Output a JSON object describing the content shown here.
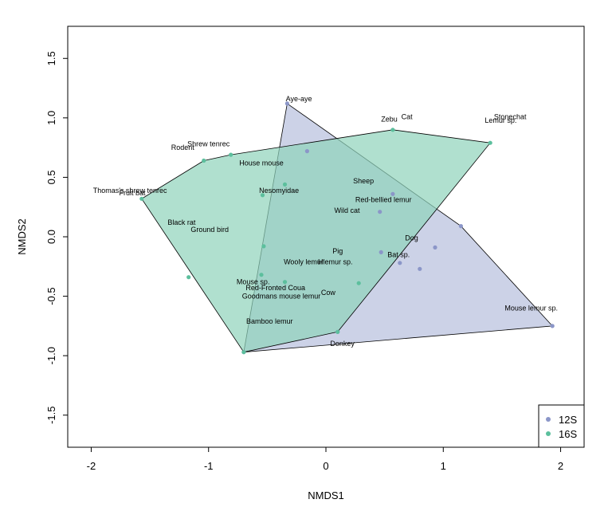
{
  "chart_data": {
    "type": "scatter",
    "xlabel": "NMDS1",
    "ylabel": "NMDS2",
    "xlim": [
      -2.2,
      2.2
    ],
    "ylim": [
      -1.77,
      1.77
    ],
    "xticks": [
      "-2",
      "-1",
      "0",
      "1",
      "2"
    ],
    "yticks": [
      "-1.5",
      "-1.0",
      "-0.5",
      "0.0",
      "0.5",
      "1.0",
      "1.5"
    ],
    "legend_position": "bottom-right",
    "series": [
      {
        "name": "12S",
        "color": "#8b96c8",
        "fill": "#b7bfdd",
        "points": [
          {
            "x": -0.33,
            "y": 1.12
          },
          {
            "x": -0.16,
            "y": 0.72
          },
          {
            "x": 0.57,
            "y": 0.36
          },
          {
            "x": 0.46,
            "y": 0.21
          },
          {
            "x": 1.15,
            "y": 0.09
          },
          {
            "x": 0.93,
            "y": -0.09
          },
          {
            "x": 0.47,
            "y": -0.13
          },
          {
            "x": 0.63,
            "y": -0.22
          },
          {
            "x": 0.8,
            "y": -0.27
          },
          {
            "x": 1.93,
            "y": -0.75
          },
          {
            "x": 0.1,
            "y": -0.8
          },
          {
            "x": -0.7,
            "y": -0.97
          }
        ],
        "hull": [
          {
            "x": -0.33,
            "y": 1.12
          },
          {
            "x": 1.15,
            "y": 0.09
          },
          {
            "x": 1.93,
            "y": -0.75
          },
          {
            "x": -0.7,
            "y": -0.97
          }
        ]
      },
      {
        "name": "16S",
        "color": "#5cbf9d",
        "fill": "#8fd3bb",
        "points": [
          {
            "x": 0.57,
            "y": 0.9
          },
          {
            "x": 1.4,
            "y": 0.79
          },
          {
            "x": -0.81,
            "y": 0.69
          },
          {
            "x": -1.04,
            "y": 0.64
          },
          {
            "x": -1.57,
            "y": 0.32
          },
          {
            "x": -0.35,
            "y": 0.44
          },
          {
            "x": -0.54,
            "y": 0.35
          },
          {
            "x": -0.53,
            "y": -0.08
          },
          {
            "x": -1.17,
            "y": -0.34
          },
          {
            "x": -0.55,
            "y": -0.32
          },
          {
            "x": -0.35,
            "y": -0.38
          },
          {
            "x": 0.28,
            "y": -0.39
          },
          {
            "x": 0.1,
            "y": -0.8
          },
          {
            "x": -0.7,
            "y": -0.97
          }
        ],
        "hull": [
          {
            "x": 0.57,
            "y": 0.9
          },
          {
            "x": 1.4,
            "y": 0.79
          },
          {
            "x": 0.1,
            "y": -0.8
          },
          {
            "x": -0.7,
            "y": -0.97
          },
          {
            "x": -1.57,
            "y": 0.32
          },
          {
            "x": -1.04,
            "y": 0.64
          },
          {
            "x": -0.81,
            "y": 0.69
          }
        ]
      }
    ],
    "labels": [
      {
        "text": "Aye-aye",
        "x": -0.23,
        "y": 1.14
      },
      {
        "text": "Zebu",
        "x": 0.54,
        "y": 0.97
      },
      {
        "text": "Cat",
        "x": 0.69,
        "y": 0.99
      },
      {
        "text": "Stonechat",
        "x": 1.57,
        "y": 0.99
      },
      {
        "text": "Lemur sp.",
        "x": 1.49,
        "y": 0.96
      },
      {
        "text": "Shrew tenrec",
        "x": -1.0,
        "y": 0.76
      },
      {
        "text": "Rodent",
        "x": -1.22,
        "y": 0.73
      },
      {
        "text": "House mouse",
        "x": -0.55,
        "y": 0.6
      },
      {
        "text": "Sheep",
        "x": 0.32,
        "y": 0.45
      },
      {
        "text": "Thomas's shrew tenrec",
        "x": -1.67,
        "y": 0.37
      },
      {
        "text": "Fruit bat",
        "x": -1.65,
        "y": 0.35
      },
      {
        "text": "Nesomyidae",
        "x": -0.4,
        "y": 0.37
      },
      {
        "text": "Red-bellied lemur",
        "x": 0.49,
        "y": 0.29
      },
      {
        "text": "Wild cat",
        "x": 0.18,
        "y": 0.2
      },
      {
        "text": "Black rat",
        "x": -1.23,
        "y": 0.1
      },
      {
        "text": "Ground bird",
        "x": -0.99,
        "y": 0.04
      },
      {
        "text": "Dog",
        "x": 0.73,
        "y": -0.03
      },
      {
        "text": "Pig",
        "x": 0.1,
        "y": -0.14
      },
      {
        "text": "Bat sp.",
        "x": 0.62,
        "y": -0.17
      },
      {
        "text": "Wooly lemur",
        "x": -0.19,
        "y": -0.23
      },
      {
        "text": "Hlemur sp.",
        "x": 0.08,
        "y": -0.23
      },
      {
        "text": "Mouse sp.",
        "x": -0.62,
        "y": -0.4
      },
      {
        "text": "Red-Fronted Coua",
        "x": -0.43,
        "y": -0.45
      },
      {
        "text": "Goodmans mouse lemur",
        "x": -0.38,
        "y": -0.52
      },
      {
        "text": "Cow",
        "x": 0.02,
        "y": -0.49
      },
      {
        "text": "Mouse lemur sp.",
        "x": 1.75,
        "y": -0.62
      },
      {
        "text": "Bamboo lemur",
        "x": -0.48,
        "y": -0.73
      },
      {
        "text": "Donkey",
        "x": 0.14,
        "y": -0.92
      }
    ]
  }
}
